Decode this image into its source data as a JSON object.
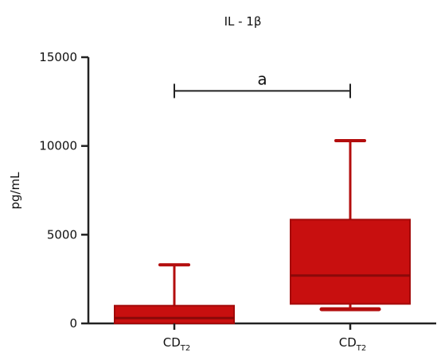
{
  "chart_data": {
    "type": "boxplot",
    "title": "IL - 1β",
    "ylabel": "pg/mL",
    "xlabel": "",
    "ylim": [
      0,
      15000
    ],
    "yticks": [
      0,
      5000,
      10000,
      15000
    ],
    "ytick_labels": [
      "0",
      "5000",
      "10000",
      "15000"
    ],
    "categories": [
      {
        "base": "CD",
        "sub": "T2"
      },
      {
        "base": "CD",
        "sub": "T2"
      }
    ],
    "boxes": [
      {
        "min": 0,
        "q1": 0,
        "median": 300,
        "q3": 1000,
        "max": 3300
      },
      {
        "min": 800,
        "q1": 1100,
        "median": 2700,
        "q3": 5850,
        "max": 10300
      }
    ],
    "significance": {
      "from": 0,
      "to": 1,
      "y": 13100,
      "label": "a"
    },
    "colors": {
      "fill": "#c80f0f",
      "edge": "#a30a0a",
      "axis": "#222222",
      "whisker": "#b30d0d"
    }
  }
}
